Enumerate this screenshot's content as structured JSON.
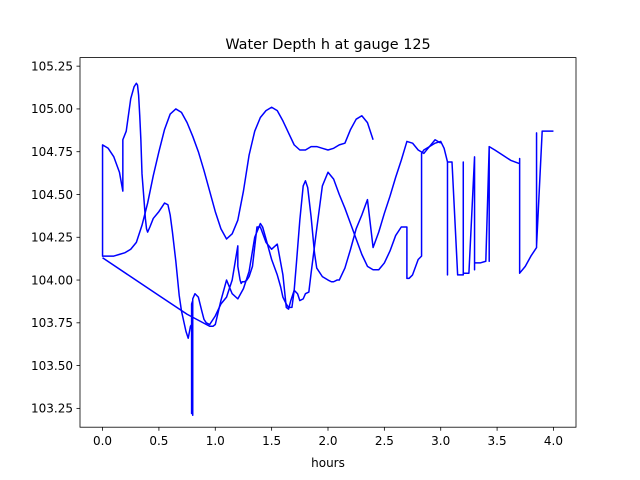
{
  "chart_data": {
    "type": "line",
    "title": "Water Depth h at gauge 125",
    "xlabel": "hours",
    "ylabel": "",
    "xlim": [
      -0.2,
      4.2
    ],
    "ylim": [
      103.14,
      105.3
    ],
    "x_ticks": [
      0.0,
      0.5,
      1.0,
      1.5,
      2.0,
      2.5,
      3.0,
      3.5,
      4.0
    ],
    "x_tick_labels": [
      "0.0",
      "0.5",
      "1.0",
      "1.5",
      "2.0",
      "2.5",
      "3.0",
      "3.5",
      "4.0"
    ],
    "y_ticks": [
      103.25,
      103.5,
      103.75,
      104.0,
      104.25,
      104.5,
      104.75,
      105.0,
      105.25
    ],
    "y_tick_labels": [
      "103.25",
      "103.50",
      "103.75",
      "104.00",
      "104.25",
      "104.50",
      "104.75",
      "105.00",
      "105.25"
    ],
    "grid": false,
    "series": [
      {
        "name": "",
        "color": "#0000ff",
        "x": [
          0.0,
          0.0,
          0.0,
          0.05,
          0.1,
          0.15,
          0.18,
          0.18,
          0.21,
          0.25,
          0.28,
          0.3,
          0.31,
          0.32,
          0.33,
          0.34,
          0.35,
          0.37,
          0.38,
          0.39,
          0.4,
          0.42,
          0.45,
          0.5,
          0.55,
          0.58,
          0.6,
          0.62,
          0.65,
          0.68,
          0.7,
          0.72,
          0.74,
          0.76,
          0.78,
          0.79,
          0.79,
          0.79,
          0.8,
          0.8,
          0.8,
          0.82,
          0.85,
          0.88,
          0.9,
          0.92,
          0.95,
          0.97,
          1.0,
          1.05,
          1.1,
          1.15,
          1.2,
          1.2,
          1.22,
          1.23,
          1.24,
          1.26,
          1.28,
          1.3,
          1.33,
          1.37,
          1.4,
          1.45,
          1.5,
          1.55,
          1.6,
          1.63,
          1.65,
          1.67,
          1.7,
          1.73,
          1.75,
          1.78,
          1.8,
          1.83,
          1.85,
          1.9,
          1.95,
          2.0,
          2.05,
          2.1,
          2.15,
          2.2,
          2.25,
          2.3,
          2.35,
          2.4,
          2.45,
          2.5,
          2.55,
          2.6,
          2.65,
          2.7,
          2.7,
          2.72,
          2.75,
          2.8,
          2.83,
          2.83,
          2.85,
          2.9,
          2.95,
          3.0,
          3.03,
          3.06,
          3.06,
          3.06,
          3.1,
          3.15,
          3.2,
          3.2,
          3.2,
          3.25,
          3.3,
          3.3,
          3.3,
          3.35,
          3.4,
          3.43,
          3.43,
          3.43,
          3.48,
          3.55,
          3.62,
          3.7,
          3.7,
          3.7,
          3.75,
          3.8,
          3.85,
          3.85,
          3.85,
          3.9,
          4.0
        ],
        "y": [
          104.38,
          104.14,
          104.79,
          104.77,
          104.72,
          104.63,
          104.52,
          104.82,
          104.87,
          105.06,
          105.13,
          105.15,
          105.14,
          105.08,
          104.96,
          104.82,
          104.62,
          104.45,
          104.36,
          104.3,
          104.28,
          104.31,
          104.36,
          104.4,
          104.45,
          104.44,
          104.38,
          104.28,
          104.11,
          103.91,
          103.82,
          103.76,
          103.7,
          103.66,
          103.73,
          103.74,
          103.22,
          103.86,
          103.88,
          103.21,
          103.89,
          103.92,
          103.9,
          103.82,
          103.77,
          103.75,
          103.74,
          103.76,
          103.79,
          103.86,
          103.9,
          104.0,
          104.2,
          104.08,
          104.0,
          103.98,
          103.99,
          103.99,
          104.0,
          104.02,
          104.08,
          104.31,
          104.31,
          104.22,
          104.18,
          104.21,
          104.03,
          103.84,
          103.83,
          103.88,
          103.94,
          103.92,
          103.88,
          103.89,
          103.92,
          103.93,
          104.04,
          104.3,
          104.55,
          104.63,
          104.59,
          104.5,
          104.42,
          104.33,
          104.24,
          104.15,
          104.08,
          104.06,
          104.06,
          104.1,
          104.17,
          104.26,
          104.31,
          104.31,
          104.01,
          104.01,
          104.03,
          104.12,
          104.14,
          104.74,
          104.76,
          104.78,
          104.8,
          104.81,
          104.77,
          104.69,
          104.03,
          104.69,
          104.69,
          104.03,
          104.03,
          104.69,
          104.04,
          104.04,
          104.72,
          104.06,
          104.1,
          104.1,
          104.11,
          104.78,
          104.11,
          104.78,
          104.76,
          104.73,
          104.7,
          104.68,
          104.71,
          104.04,
          104.08,
          104.14,
          104.19,
          104.86,
          104.2,
          104.87,
          104.87
        ]
      },
      {
        "name": "",
        "color": "#0000ff",
        "x": [
          0.0,
          0.25,
          0.5,
          0.75,
          0.95,
          0.98,
          1.0,
          1.05,
          1.1,
          1.15,
          1.2,
          1.25,
          1.3,
          1.35,
          1.4,
          1.42,
          1.45,
          1.5,
          1.55,
          1.58,
          1.6,
          1.63,
          1.65,
          1.68,
          1.7,
          1.72,
          1.75,
          1.78,
          1.8,
          1.82,
          1.85,
          1.88,
          1.9,
          1.95,
          2.0,
          2.03,
          2.05,
          2.08,
          2.1,
          2.15,
          2.2,
          2.25,
          2.3,
          2.35,
          2.4,
          2.45,
          2.5,
          2.55,
          2.6,
          2.65,
          2.7,
          2.75,
          2.8,
          2.85,
          2.9,
          2.95,
          3.0
        ],
        "y": [
          104.13,
          104.02,
          103.91,
          103.8,
          103.73,
          103.73,
          103.74,
          103.88,
          104.0,
          103.92,
          103.89,
          103.95,
          104.05,
          104.25,
          104.33,
          104.31,
          104.24,
          104.12,
          104.03,
          103.96,
          103.9,
          103.86,
          103.84,
          103.84,
          103.94,
          104.1,
          104.35,
          104.55,
          104.58,
          104.54,
          104.37,
          104.16,
          104.07,
          104.02,
          104.0,
          103.99,
          103.99,
          104.0,
          104.0,
          104.07,
          104.18,
          104.3,
          104.38,
          104.47,
          104.19,
          104.28,
          104.39,
          104.49,
          104.6,
          104.7,
          104.81,
          104.8,
          104.76,
          104.74,
          104.78,
          104.82,
          104.8
        ]
      },
      {
        "name": "",
        "color": "#0000ff",
        "x": [
          0.0,
          0.05,
          0.1,
          0.15,
          0.2,
          0.25,
          0.3,
          0.35,
          0.4,
          0.45,
          0.5,
          0.55,
          0.6,
          0.65,
          0.7,
          0.75,
          0.8,
          0.85,
          0.9,
          0.95,
          1.0,
          1.05,
          1.1,
          1.15,
          1.2,
          1.25,
          1.3,
          1.35,
          1.4,
          1.45,
          1.5,
          1.55,
          1.6,
          1.65,
          1.7,
          1.75,
          1.8,
          1.85,
          1.9,
          1.95,
          2.0,
          2.05,
          2.1,
          2.15,
          2.2,
          2.25,
          2.3,
          2.35,
          2.4
        ],
        "y": [
          104.14,
          104.14,
          104.14,
          104.15,
          104.16,
          104.18,
          104.22,
          104.32,
          104.45,
          104.61,
          104.75,
          104.88,
          104.97,
          105.0,
          104.98,
          104.92,
          104.84,
          104.75,
          104.64,
          104.52,
          104.4,
          104.3,
          104.24,
          104.27,
          104.35,
          104.52,
          104.73,
          104.87,
          104.95,
          104.99,
          105.01,
          104.99,
          104.93,
          104.86,
          104.79,
          104.76,
          104.76,
          104.78,
          104.78,
          104.77,
          104.76,
          104.77,
          104.79,
          104.8,
          104.88,
          104.94,
          104.96,
          104.92,
          104.82
        ]
      }
    ]
  }
}
